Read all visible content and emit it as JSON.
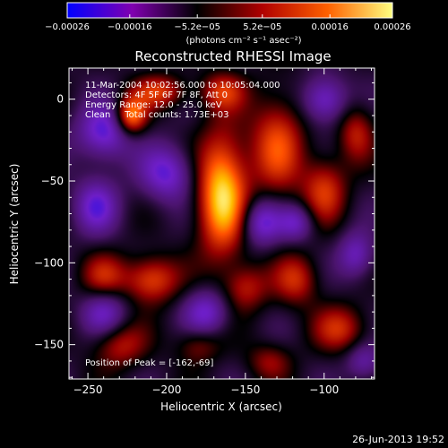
{
  "chart_data": {
    "type": "heatmap",
    "title": "Reconstructed RHESSI Image",
    "xlabel": "Heliocentric X (arcsec)",
    "ylabel": "Heliocentric Y (arcsec)",
    "xlim": [
      -262,
      -68
    ],
    "ylim": [
      -171,
      19
    ],
    "x_ticks": [
      -250,
      -200,
      -150,
      -100
    ],
    "x_tick_labels": [
      "−250",
      "−200",
      "−150",
      "−100"
    ],
    "y_ticks": [
      0,
      -50,
      -100,
      -150
    ],
    "y_tick_labels": [
      "0",
      "−50",
      "−100",
      "−150"
    ],
    "colorbar": {
      "vmin": -0.00026,
      "vmax": 0.00026,
      "ticks": [
        -0.00026,
        -0.00016,
        -5.2e-05,
        5.2e-05,
        0.00016,
        0.00026
      ],
      "tick_labels": [
        "−0.00026",
        "−0.00016",
        "−5.2e−05",
        "5.2e−05",
        "0.00016",
        "0.00026"
      ],
      "unit_label": "(photons cm⁻² s⁻¹ asec⁻²)",
      "colors": [
        "#0000ff",
        "#8000b0",
        "#000000",
        "#b00000",
        "#ff6000",
        "#ffff80"
      ]
    },
    "annotations": [
      "11-Mar-2004 10:02:56.000 to 10:05:04.000",
      "Detectors: 4F 5F 6F 7F 8F, Att 0",
      "Energy Range: 12.0 - 25.0 keV",
      "Clean     Total counts: 1.73E+03"
    ],
    "peak_label": "Position of Peak = [-162,-69]",
    "peak": [
      -162,
      -69
    ],
    "blobs": [
      {
        "x": -165,
        "y": -58,
        "sx": 11,
        "sy": 26,
        "a": 1.05
      },
      {
        "x": -223,
        "y": -10,
        "sx": 7,
        "sy": 8,
        "a": 0.85
      },
      {
        "x": -205,
        "y": 5,
        "sx": 12,
        "sy": 7,
        "a": 0.55
      },
      {
        "x": -165,
        "y": 5,
        "sx": 10,
        "sy": 8,
        "a": 0.5
      },
      {
        "x": -130,
        "y": -28,
        "sx": 12,
        "sy": 22,
        "a": 0.62
      },
      {
        "x": -100,
        "y": -55,
        "sx": 10,
        "sy": 14,
        "a": 0.55
      },
      {
        "x": -80,
        "y": -20,
        "sx": 8,
        "sy": 12,
        "a": 0.45
      },
      {
        "x": -210,
        "y": -110,
        "sx": 12,
        "sy": 10,
        "a": 0.65
      },
      {
        "x": -240,
        "y": -108,
        "sx": 10,
        "sy": 10,
        "a": 0.45
      },
      {
        "x": -150,
        "y": -115,
        "sx": 10,
        "sy": 10,
        "a": 0.45
      },
      {
        "x": -118,
        "y": -110,
        "sx": 10,
        "sy": 11,
        "a": 0.5
      },
      {
        "x": -90,
        "y": -140,
        "sx": 12,
        "sy": 10,
        "a": 0.5
      },
      {
        "x": -230,
        "y": -150,
        "sx": 12,
        "sy": 10,
        "a": 0.45
      },
      {
        "x": -180,
        "y": -150,
        "sx": 10,
        "sy": 8,
        "a": 0.35
      },
      {
        "x": -135,
        "y": -160,
        "sx": 10,
        "sy": 8,
        "a": 0.35
      },
      {
        "x": -240,
        "y": -20,
        "sx": 12,
        "sy": 12,
        "a": -0.65
      },
      {
        "x": -200,
        "y": -45,
        "sx": 12,
        "sy": 12,
        "a": -0.6
      },
      {
        "x": -245,
        "y": -65,
        "sx": 10,
        "sy": 12,
        "a": -0.55
      },
      {
        "x": -140,
        "y": -75,
        "sx": 9,
        "sy": 10,
        "a": -0.6
      },
      {
        "x": -118,
        "y": -75,
        "sx": 8,
        "sy": 8,
        "a": -0.5
      },
      {
        "x": -100,
        "y": 0,
        "sx": 10,
        "sy": 10,
        "a": -0.6
      },
      {
        "x": -175,
        "y": -130,
        "sx": 10,
        "sy": 10,
        "a": -0.55
      },
      {
        "x": -240,
        "y": -130,
        "sx": 10,
        "sy": 10,
        "a": -0.5
      },
      {
        "x": -80,
        "y": -95,
        "sx": 8,
        "sy": 10,
        "a": -0.5
      },
      {
        "x": -75,
        "y": -160,
        "sx": 8,
        "sy": 8,
        "a": -0.4
      }
    ],
    "background": -0.12
  },
  "footer": {
    "date": "26-Jun-2013 19:52"
  }
}
